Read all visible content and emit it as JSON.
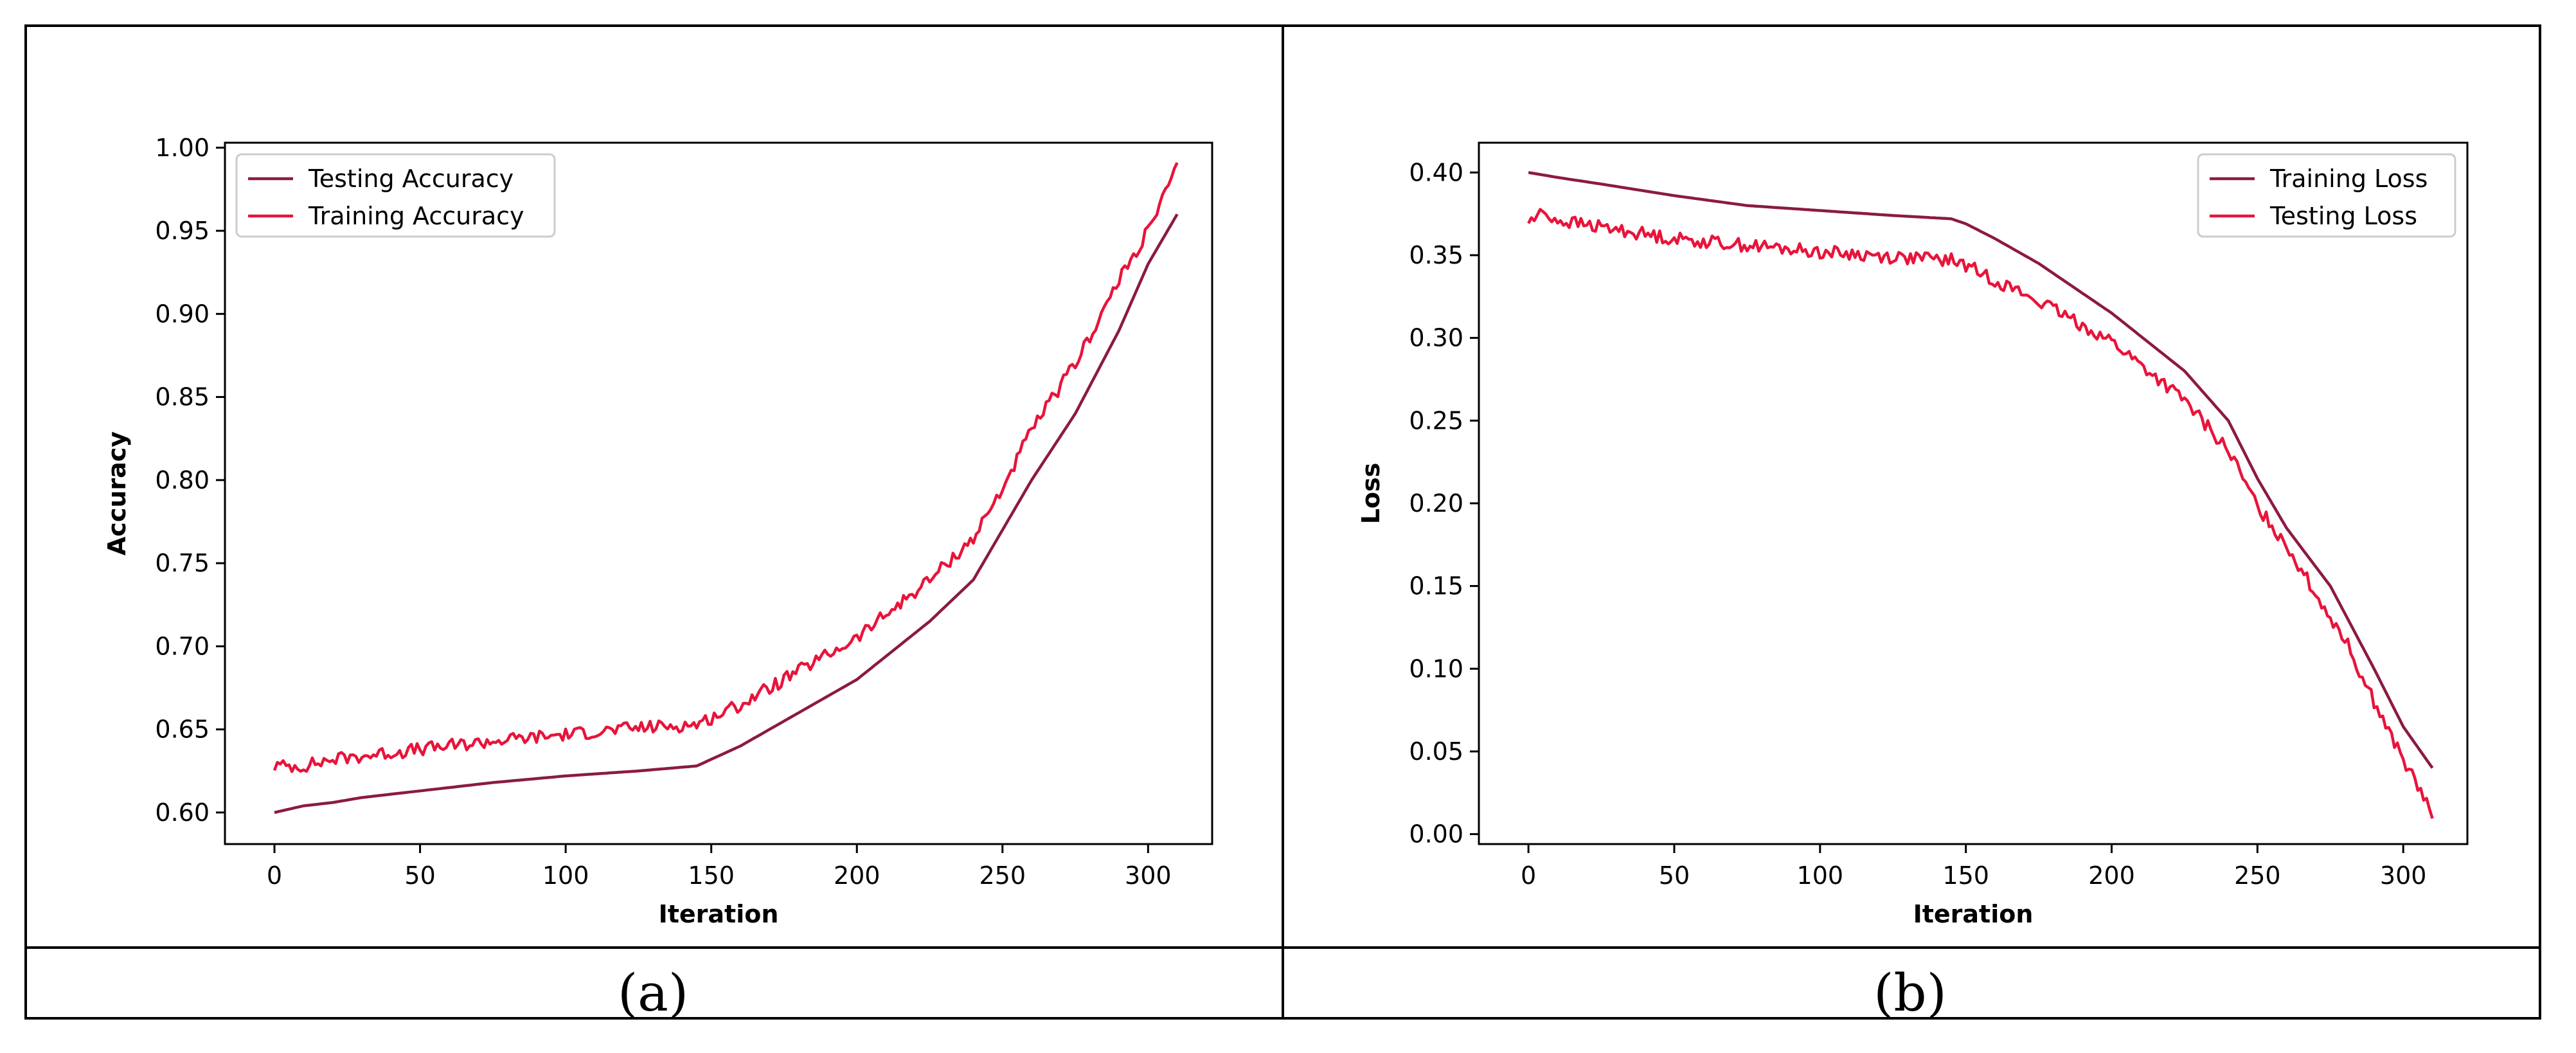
{
  "captions": [
    "(a)",
    "(b)"
  ],
  "chart_data": [
    {
      "type": "line",
      "title": "",
      "xlabel": "Iteration",
      "ylabel": "Accuracy",
      "xlim": [
        -17,
        322
      ],
      "ylim": [
        0.581,
        1.003
      ],
      "xticks": [
        "0",
        "50",
        "100",
        "150",
        "200",
        "250",
        "300"
      ],
      "yticks": [
        "0.60",
        "0.65",
        "0.70",
        "0.75",
        "0.80",
        "0.85",
        "0.90",
        "0.95",
        "1.00"
      ],
      "legend_position": "top-left",
      "grid": false,
      "series": [
        {
          "name": "Testing Accuracy",
          "color": "#8b1a44",
          "noise": 0,
          "x": [
            0,
            10,
            20,
            30,
            50,
            75,
            100,
            125,
            145,
            150,
            160,
            175,
            200,
            225,
            240,
            250,
            260,
            275,
            290,
            300,
            310
          ],
          "y": [
            0.6,
            0.604,
            0.606,
            0.609,
            0.613,
            0.618,
            0.622,
            0.625,
            0.628,
            0.632,
            0.64,
            0.655,
            0.68,
            0.715,
            0.74,
            0.77,
            0.8,
            0.84,
            0.89,
            0.93,
            0.96
          ]
        },
        {
          "name": "Training Accuracy",
          "color": "#e8143b",
          "noise": 0.004,
          "x": [
            0,
            10,
            20,
            30,
            50,
            75,
            100,
            125,
            145,
            150,
            160,
            175,
            200,
            225,
            240,
            250,
            260,
            275,
            290,
            300,
            310
          ],
          "y": [
            0.628,
            0.628,
            0.632,
            0.634,
            0.638,
            0.643,
            0.647,
            0.651,
            0.653,
            0.657,
            0.665,
            0.68,
            0.705,
            0.74,
            0.765,
            0.795,
            0.83,
            0.87,
            0.92,
            0.95,
            0.988
          ]
        }
      ]
    },
    {
      "type": "line",
      "title": "",
      "xlabel": "Iteration",
      "ylabel": "Loss",
      "xlim": [
        -17,
        322
      ],
      "ylim": [
        -0.006,
        0.418
      ],
      "xticks": [
        "0",
        "50",
        "100",
        "150",
        "200",
        "250",
        "300"
      ],
      "yticks": [
        "0.00",
        "0.05",
        "0.10",
        "0.15",
        "0.20",
        "0.25",
        "0.30",
        "0.35",
        "0.40"
      ],
      "legend_position": "top-right",
      "grid": false,
      "series": [
        {
          "name": "Training Loss",
          "color": "#8b1a44",
          "noise": 0,
          "x": [
            0,
            10,
            25,
            50,
            75,
            100,
            125,
            145,
            150,
            160,
            175,
            200,
            225,
            240,
            250,
            260,
            275,
            290,
            300,
            310
          ],
          "y": [
            0.4,
            0.397,
            0.393,
            0.386,
            0.38,
            0.377,
            0.374,
            0.372,
            0.369,
            0.36,
            0.345,
            0.315,
            0.28,
            0.25,
            0.215,
            0.185,
            0.15,
            0.1,
            0.065,
            0.04
          ]
        },
        {
          "name": "Testing Loss",
          "color": "#e8143b",
          "noise": 0.004,
          "x": [
            0,
            5,
            10,
            25,
            50,
            75,
            100,
            125,
            145,
            150,
            160,
            175,
            200,
            225,
            240,
            250,
            260,
            270,
            280,
            290,
            300,
            310
          ],
          "y": [
            0.37,
            0.376,
            0.371,
            0.367,
            0.36,
            0.356,
            0.352,
            0.349,
            0.347,
            0.344,
            0.335,
            0.322,
            0.298,
            0.262,
            0.232,
            0.198,
            0.175,
            0.145,
            0.118,
            0.08,
            0.045,
            0.012
          ]
        }
      ]
    }
  ]
}
